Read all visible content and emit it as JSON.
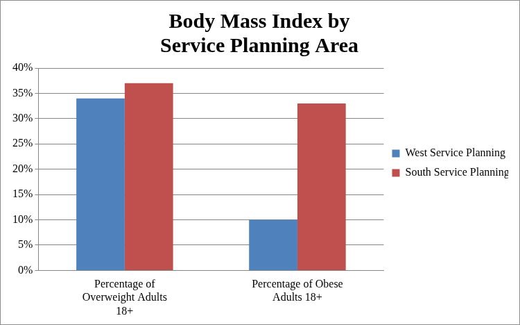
{
  "chart_data": {
    "type": "bar",
    "title": [
      "Body Mass Index by",
      "Service Planning Area"
    ],
    "categories": [
      "Percentage of Overweight Adults 18+",
      "Percentage of Obese Adults 18+"
    ],
    "series": [
      {
        "name": "West Service Planning Area",
        "color": "#4f81bd",
        "values": [
          34,
          10
        ]
      },
      {
        "name": "South Service Planning Area",
        "color": "#c0504d",
        "values": [
          37,
          33
        ]
      }
    ],
    "ylim": [
      0,
      40
    ],
    "yticks": [
      {
        "value": 0,
        "label": "0%"
      },
      {
        "value": 5,
        "label": "5%"
      },
      {
        "value": 10,
        "label": "10%"
      },
      {
        "value": 15,
        "label": "15%"
      },
      {
        "value": 20,
        "label": "20%"
      },
      {
        "value": 25,
        "label": "25%"
      },
      {
        "value": 30,
        "label": "30%"
      },
      {
        "value": 35,
        "label": "35%"
      },
      {
        "value": 40,
        "label": "40%"
      }
    ],
    "grid": true,
    "legend": "right"
  }
}
